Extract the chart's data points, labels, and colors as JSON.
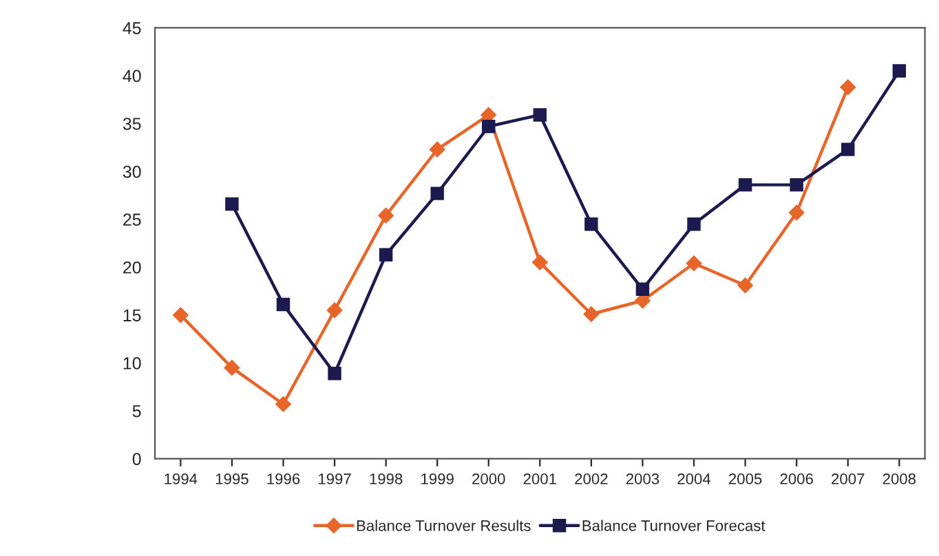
{
  "chart_data": {
    "type": "line",
    "categories": [
      "1994",
      "1995",
      "1996",
      "1997",
      "1998",
      "1999",
      "2000",
      "2001",
      "2002",
      "2003",
      "2004",
      "2005",
      "2006",
      "2007",
      "2008"
    ],
    "series": [
      {
        "name": "Balance Turnover Results",
        "color": "#e8652a",
        "marker": "diamond",
        "values": [
          15,
          9.5,
          5.7,
          15.5,
          25.4,
          32.3,
          35.9,
          20.5,
          15.1,
          16.5,
          20.4,
          18.1,
          25.7,
          38.8,
          null
        ]
      },
      {
        "name": "Balance Turnover Forecast",
        "color": "#1c1a4e",
        "marker": "square",
        "values": [
          null,
          26.6,
          16.1,
          8.9,
          21.3,
          27.7,
          34.7,
          35.9,
          24.5,
          17.7,
          24.5,
          28.6,
          28.6,
          32.3,
          40.5
        ]
      }
    ],
    "ylim": [
      0,
      45
    ],
    "yticks": [
      0,
      5,
      10,
      15,
      20,
      25,
      30,
      35,
      40,
      45
    ],
    "grid": false,
    "legend": "bottom",
    "line_style": "solid"
  }
}
